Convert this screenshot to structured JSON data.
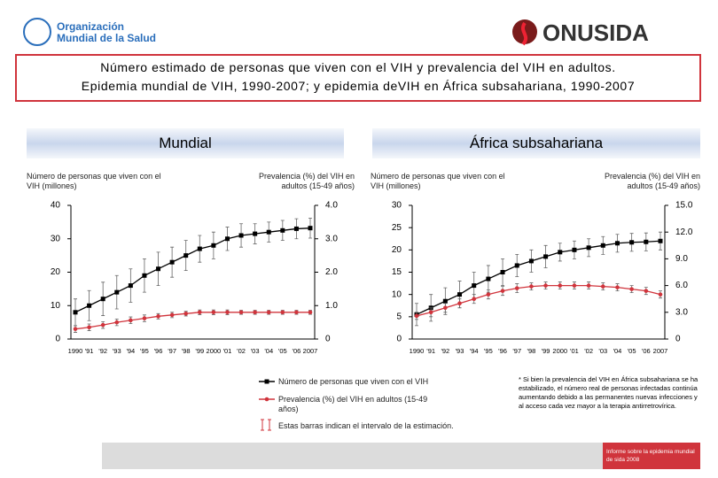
{
  "header": {
    "organization": "Organización Mundial de la Salud",
    "logo": "ONUSIDA",
    "title_lines": [
      "Número estimado de personas que viven con el VIH y prevalencia del VIH en adultos.",
      "Epidemia mundial de VIH, 1990-2007; y epidemia deVIH en África subsahariana, 1990-2007"
    ]
  },
  "chart_data": [
    {
      "type": "line",
      "title": "Mundial",
      "y_label": "Número de personas que viven con el VIH (millones)",
      "y2_label": "Prevalencia (%) del VIH en adultos (15-49 años)",
      "categories": [
        "1990",
        "'91",
        "'92",
        "'93",
        "'94",
        "'95",
        "'96",
        "'97",
        "'98",
        "'99",
        "2000",
        "'01",
        "'02",
        "'03",
        "'04",
        "'05",
        "'06",
        "2007"
      ],
      "ylim": [
        0,
        40
      ],
      "yticks": [
        0,
        10,
        20,
        30,
        40
      ],
      "y2lim": [
        0,
        4
      ],
      "y2ticks": [
        0,
        {
          "value": 1,
          "label": "1.0"
        },
        {
          "value": 2,
          "label": "2.0"
        },
        {
          "value": 3,
          "label": "3.0"
        },
        {
          "value": 4,
          "label": "4.0"
        }
      ],
      "series": [
        {
          "name": "Número de personas que viven con el VIH",
          "color": "#000000",
          "marker": "square",
          "values": [
            8,
            10,
            12,
            14,
            16,
            19,
            21,
            23,
            25,
            27,
            28,
            30,
            31,
            31.5,
            32,
            32.5,
            33,
            33.2
          ],
          "errors": [
            4,
            4.5,
            5,
            5,
            5,
            5,
            5,
            4.5,
            4.5,
            4,
            4,
            3.5,
            3.5,
            3,
            3,
            3,
            3,
            3
          ]
        },
        {
          "name": "Prevalencia (%) del VIH en adultos (15-49 años)",
          "color": "#d0343c",
          "marker": "circle",
          "axis": "y2",
          "values": [
            0.3,
            0.35,
            0.42,
            0.5,
            0.56,
            0.62,
            0.68,
            0.72,
            0.76,
            0.8,
            0.8,
            0.8,
            0.8,
            0.8,
            0.8,
            0.8,
            0.8,
            0.8
          ],
          "errors": [
            0.1,
            0.1,
            0.1,
            0.1,
            0.1,
            0.1,
            0.08,
            0.08,
            0.07,
            0.07,
            0.07,
            0.07,
            0.06,
            0.06,
            0.06,
            0.06,
            0.06,
            0.06
          ]
        }
      ]
    },
    {
      "type": "line",
      "title": "África subsahariana",
      "y_label": "Número de personas que viven con el VIH (millones)",
      "y2_label": "Prevalencia (%) del VIH en adultos (15-49 años)",
      "categories": [
        "1990",
        "'91",
        "'92",
        "'93",
        "'94",
        "'95",
        "'96",
        "'97",
        "'98",
        "'99",
        "2000",
        "'01",
        "'02",
        "'03",
        "'04",
        "'05",
        "'06",
        "2007"
      ],
      "ylim": [
        0,
        30
      ],
      "yticks": [
        0,
        5,
        10,
        15,
        20,
        25,
        30
      ],
      "y2lim": [
        0,
        15
      ],
      "y2ticks": [
        0,
        {
          "value": 3,
          "label": "3.0"
        },
        {
          "value": 6,
          "label": "6.0"
        },
        {
          "value": 9,
          "label": "9.0"
        },
        {
          "value": 12,
          "label": "12.0"
        },
        {
          "value": 15,
          "label": "15.0"
        }
      ],
      "series": [
        {
          "color": "#000000",
          "marker": "square",
          "values": [
            5.5,
            7,
            8.5,
            10,
            12,
            13.5,
            15,
            16.5,
            17.5,
            18.5,
            19.5,
            20,
            20.5,
            21,
            21.5,
            21.7,
            21.8,
            22
          ],
          "errors": [
            2.5,
            3,
            3,
            3,
            3,
            3,
            3,
            2.5,
            2.5,
            2.5,
            2,
            2,
            2,
            2,
            2,
            2,
            2,
            2
          ]
        },
        {
          "color": "#d0343c",
          "marker": "circle",
          "axis": "y2",
          "values": [
            2.6,
            3,
            3.5,
            4,
            4.5,
            5,
            5.4,
            5.7,
            5.9,
            6,
            6,
            6,
            6,
            5.9,
            5.8,
            5.6,
            5.4,
            5
          ],
          "errors": [
            0.4,
            0.5,
            0.5,
            0.5,
            0.5,
            0.5,
            0.5,
            0.5,
            0.4,
            0.4,
            0.4,
            0.4,
            0.4,
            0.4,
            0.4,
            0.4,
            0.4,
            0.4
          ]
        }
      ]
    }
  ],
  "legend_note": "Estas barras indican el intervalo de la estimación.",
  "footnote": "* Si bien la prevalencia del VIH en África subsahariana se ha estabilizado, el número real de personas infectadas continúa aumentando debido a las permanentes nuevas infecciones y al acceso cada vez mayor a la terapia antirretrovírica.",
  "source": "Informe sobre la epidemia mundial de sida 2008"
}
